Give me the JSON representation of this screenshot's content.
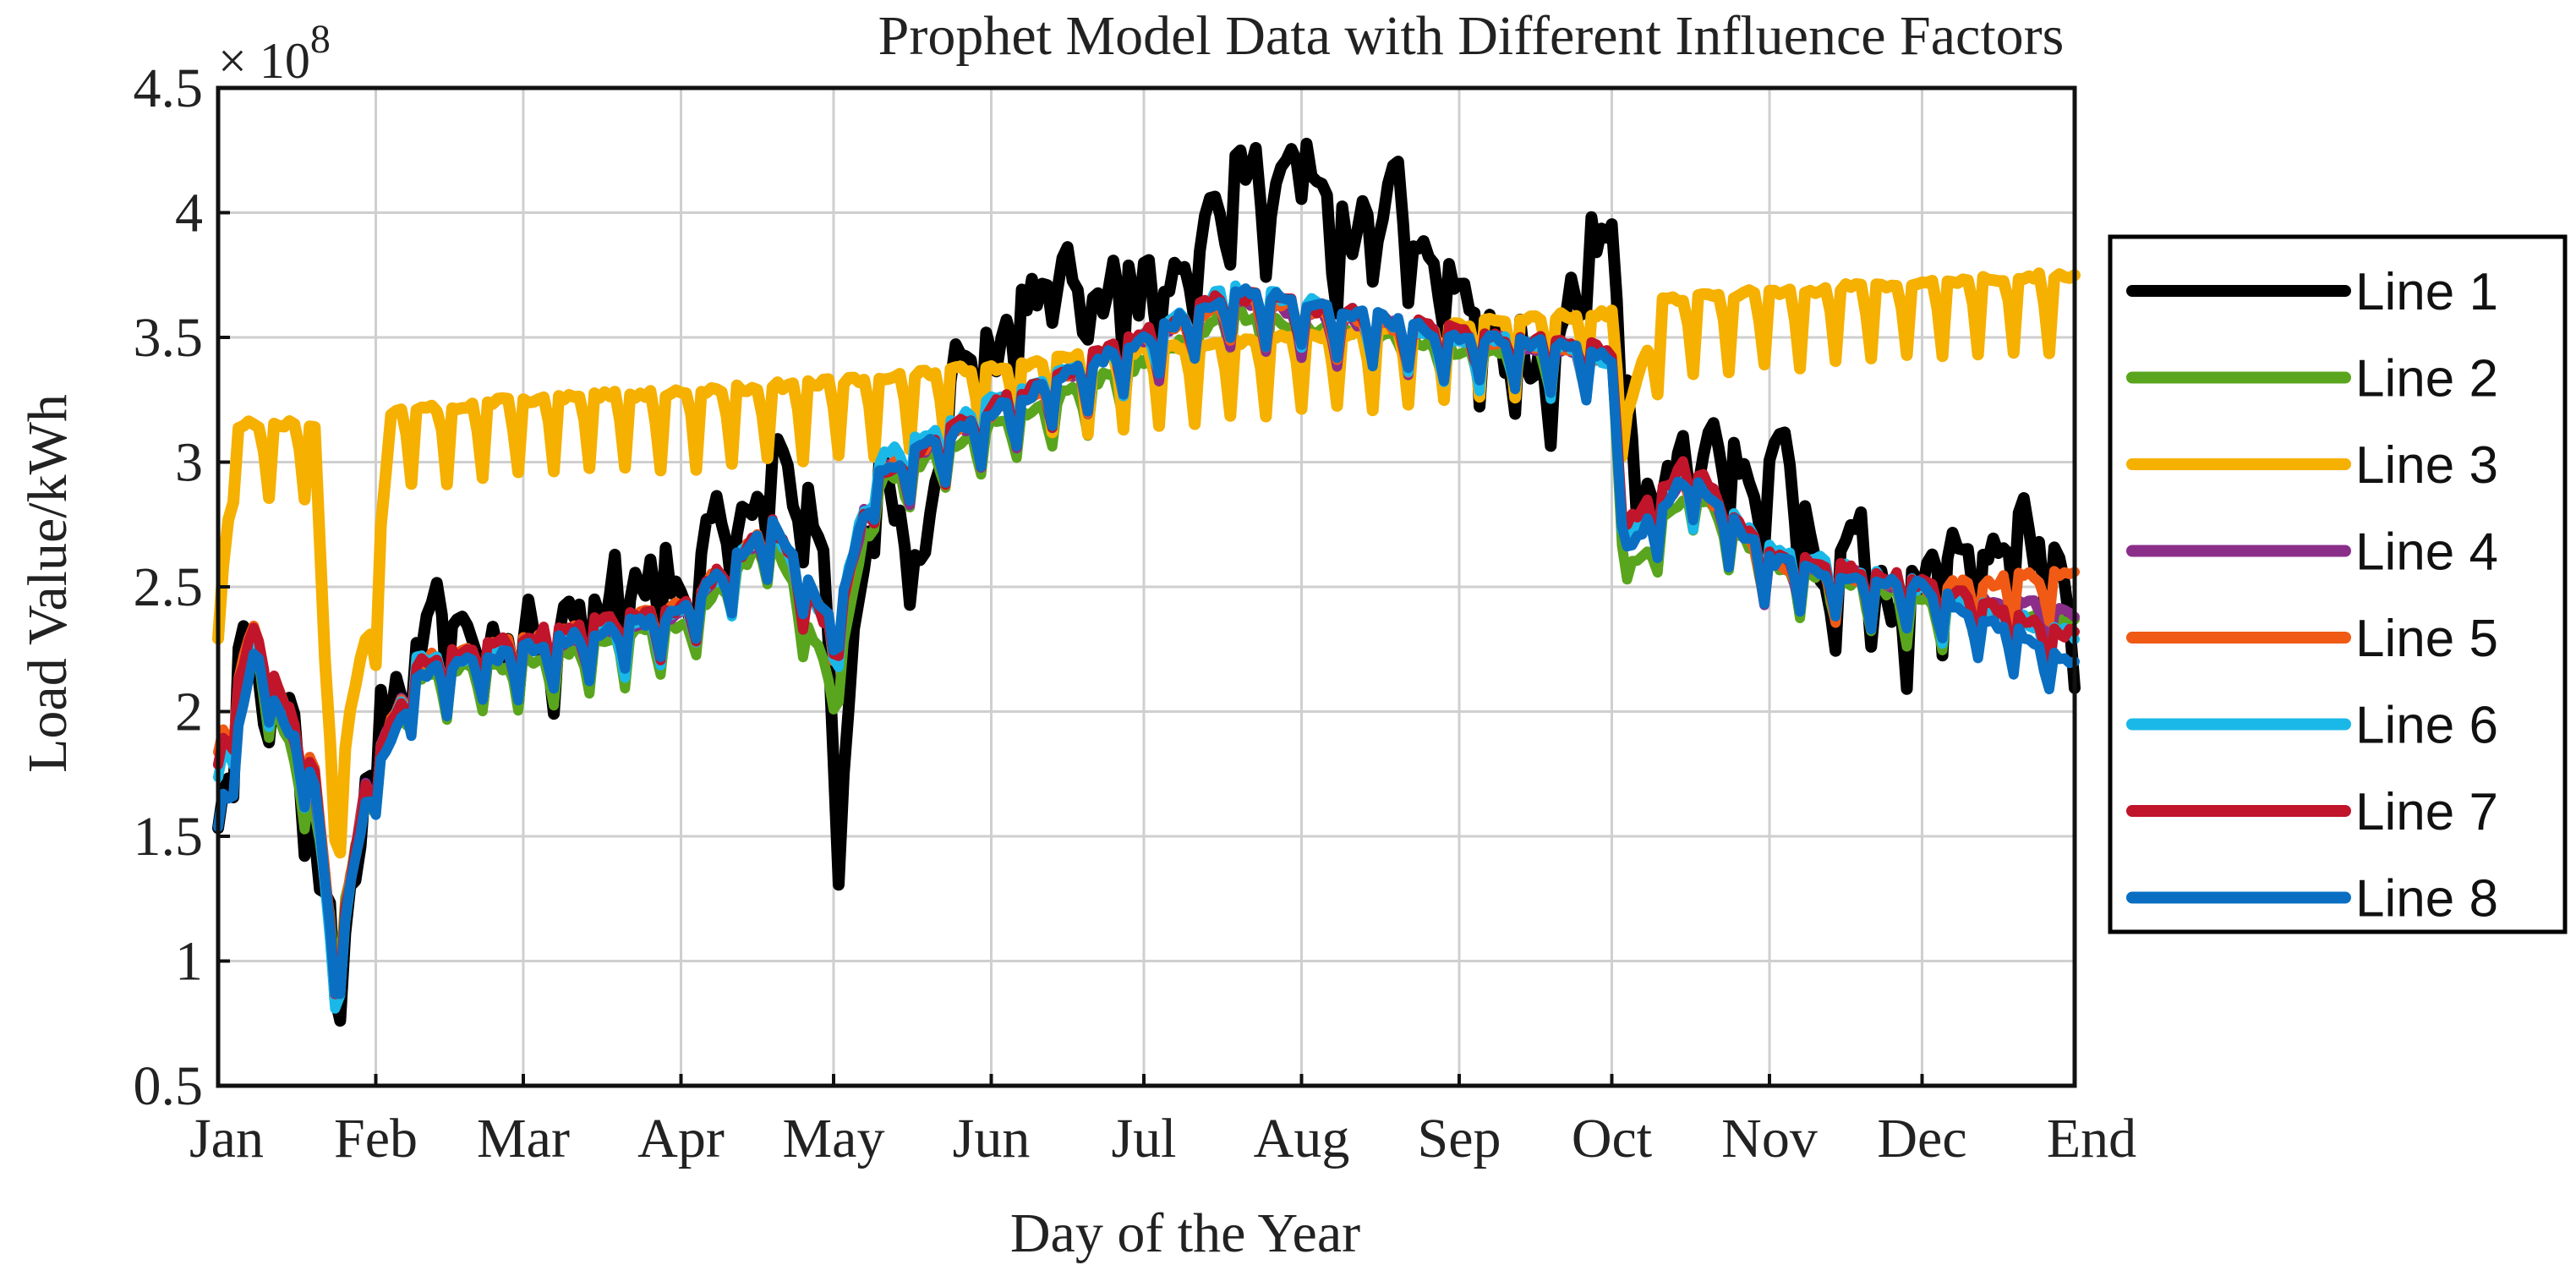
{
  "chart_data": {
    "type": "line",
    "title": "Prophet Model Data with Different Influence Factors",
    "xlabel": "Day of the Year",
    "ylabel": "Load Value/kWh",
    "y_multiplier_base": "× 10",
    "y_multiplier_exp": "8",
    "ylim": [
      0.5,
      4.5
    ],
    "yticks": [
      0.5,
      1,
      1.5,
      2,
      2.5,
      3,
      3.5,
      4,
      4.5
    ],
    "ytick_labels": [
      "0.5",
      "1",
      "1.5",
      "2",
      "2.5",
      "3",
      "3.5",
      "4",
      "4.5"
    ],
    "xlim": [
      1,
      366
    ],
    "xticks": [
      1,
      32,
      61,
      92,
      122,
      153,
      183,
      214,
      245,
      275,
      306,
      336,
      366
    ],
    "xtick_labels": [
      "Jan",
      "Feb",
      "Mar",
      "Apr",
      "May",
      "Jun",
      "Jul",
      "Aug",
      "Sep",
      "Oct",
      "Nov",
      "Dec",
      "End"
    ],
    "grid": true,
    "legend_position": "outside-right",
    "series": [
      {
        "name": "Line 1",
        "color": "#000000",
        "width": 14,
        "profile": "actual",
        "anchors": [
          [
            1,
            1.6
          ],
          [
            5,
            2.3
          ],
          [
            15,
            2.1
          ],
          [
            20,
            1.5
          ],
          [
            24,
            1.05
          ],
          [
            30,
            1.7
          ],
          [
            40,
            2.35
          ],
          [
            61,
            2.35
          ],
          [
            80,
            2.55
          ],
          [
            92,
            2.5
          ],
          [
            103,
            2.8
          ],
          [
            110,
            3.0
          ],
          [
            120,
            2.7
          ],
          [
            123,
            1.85
          ],
          [
            130,
            2.9
          ],
          [
            140,
            2.7
          ],
          [
            146,
            3.5
          ],
          [
            150,
            3.3
          ],
          [
            160,
            3.7
          ],
          [
            175,
            3.7
          ],
          [
            185,
            3.8
          ],
          [
            195,
            4.05
          ],
          [
            205,
            4.15
          ],
          [
            213,
            4.25
          ],
          [
            220,
            3.9
          ],
          [
            232,
            4.0
          ],
          [
            245,
            3.7
          ],
          [
            255,
            3.4
          ],
          [
            263,
            3.4
          ],
          [
            270,
            3.8
          ],
          [
            275,
            3.8
          ],
          [
            280,
            2.8
          ],
          [
            290,
            3.0
          ],
          [
            300,
            2.9
          ],
          [
            305,
            3.1
          ],
          [
            315,
            2.7
          ],
          [
            325,
            2.6
          ],
          [
            336,
            2.5
          ],
          [
            345,
            2.65
          ],
          [
            355,
            2.75
          ],
          [
            362,
            2.6
          ],
          [
            366,
            2.05
          ]
        ],
        "amp": 0.3,
        "seed": 11
      },
      {
        "name": "Line 2",
        "color": "#5aa51e",
        "width": 12,
        "profile": "model",
        "anchors": [
          [
            1,
            1.8
          ],
          [
            8,
            2.25
          ],
          [
            20,
            1.6
          ],
          [
            24,
            1.05
          ],
          [
            30,
            1.65
          ],
          [
            40,
            2.15
          ],
          [
            61,
            2.2
          ],
          [
            92,
            2.35
          ],
          [
            110,
            2.7
          ],
          [
            122,
            2.1
          ],
          [
            130,
            2.9
          ],
          [
            153,
            3.15
          ],
          [
            183,
            3.4
          ],
          [
            200,
            3.6
          ],
          [
            214,
            3.55
          ],
          [
            245,
            3.45
          ],
          [
            270,
            3.45
          ],
          [
            275,
            3.4
          ],
          [
            278,
            2.55
          ],
          [
            290,
            2.9
          ],
          [
            306,
            2.6
          ],
          [
            336,
            2.45
          ],
          [
            366,
            2.35
          ]
        ],
        "amp": 0.18,
        "seed": 12
      },
      {
        "name": "Line 3",
        "color": "#f5b000",
        "width": 14,
        "profile": "prophet",
        "anchors": [
          [
            1,
            2.3
          ],
          [
            4,
            3.15
          ],
          [
            20,
            3.15
          ],
          [
            22,
            2.2
          ],
          [
            24,
            1.6
          ],
          [
            27,
            2.0
          ],
          [
            32,
            2.5
          ],
          [
            35,
            3.2
          ],
          [
            61,
            3.25
          ],
          [
            92,
            3.28
          ],
          [
            122,
            3.32
          ],
          [
            153,
            3.38
          ],
          [
            183,
            3.45
          ],
          [
            214,
            3.5
          ],
          [
            245,
            3.55
          ],
          [
            275,
            3.6
          ],
          [
            278,
            3.2
          ],
          [
            285,
            3.65
          ],
          [
            306,
            3.68
          ],
          [
            336,
            3.72
          ],
          [
            366,
            3.75
          ]
        ],
        "amp": 0.3,
        "seed": 13
      },
      {
        "name": "Line 4",
        "color": "#8a2e8a",
        "width": 12,
        "profile": "model",
        "anchors": [
          [
            1,
            1.8
          ],
          [
            8,
            2.3
          ],
          [
            20,
            1.7
          ],
          [
            24,
            0.95
          ],
          [
            30,
            1.7
          ],
          [
            40,
            2.2
          ],
          [
            61,
            2.25
          ],
          [
            92,
            2.4
          ],
          [
            110,
            2.75
          ],
          [
            122,
            2.3
          ],
          [
            130,
            2.95
          ],
          [
            153,
            3.2
          ],
          [
            183,
            3.5
          ],
          [
            200,
            3.65
          ],
          [
            214,
            3.6
          ],
          [
            245,
            3.5
          ],
          [
            270,
            3.45
          ],
          [
            275,
            3.4
          ],
          [
            278,
            2.7
          ],
          [
            290,
            2.95
          ],
          [
            306,
            2.6
          ],
          [
            336,
            2.5
          ],
          [
            366,
            2.4
          ]
        ],
        "amp": 0.18,
        "seed": 14
      },
      {
        "name": "Line 5",
        "color": "#f05a14",
        "width": 12,
        "profile": "model",
        "anchors": [
          [
            1,
            1.85
          ],
          [
            8,
            2.35
          ],
          [
            20,
            1.75
          ],
          [
            24,
            0.95
          ],
          [
            30,
            1.7
          ],
          [
            40,
            2.2
          ],
          [
            61,
            2.28
          ],
          [
            92,
            2.42
          ],
          [
            110,
            2.75
          ],
          [
            122,
            2.3
          ],
          [
            130,
            2.95
          ],
          [
            153,
            3.2
          ],
          [
            183,
            3.5
          ],
          [
            200,
            3.65
          ],
          [
            214,
            3.62
          ],
          [
            245,
            3.5
          ],
          [
            270,
            3.45
          ],
          [
            275,
            3.4
          ],
          [
            278,
            2.7
          ],
          [
            290,
            2.95
          ],
          [
            306,
            2.6
          ],
          [
            336,
            2.5
          ],
          [
            366,
            2.55
          ]
        ],
        "amp": 0.18,
        "seed": 15
      },
      {
        "name": "Line 6",
        "color": "#1ab8e8",
        "width": 12,
        "profile": "model",
        "anchors": [
          [
            1,
            1.75
          ],
          [
            8,
            2.3
          ],
          [
            20,
            1.7
          ],
          [
            24,
            0.9
          ],
          [
            30,
            1.7
          ],
          [
            40,
            2.2
          ],
          [
            61,
            2.25
          ],
          [
            92,
            2.4
          ],
          [
            110,
            2.75
          ],
          [
            122,
            2.3
          ],
          [
            130,
            3.0
          ],
          [
            153,
            3.25
          ],
          [
            183,
            3.5
          ],
          [
            200,
            3.7
          ],
          [
            214,
            3.65
          ],
          [
            245,
            3.5
          ],
          [
            270,
            3.45
          ],
          [
            275,
            3.4
          ],
          [
            278,
            2.7
          ],
          [
            290,
            2.95
          ],
          [
            306,
            2.65
          ],
          [
            336,
            2.5
          ],
          [
            366,
            2.3
          ]
        ],
        "amp": 0.19,
        "seed": 16
      },
      {
        "name": "Line 7",
        "color": "#c0152a",
        "width": 12,
        "profile": "model",
        "anchors": [
          [
            1,
            1.8
          ],
          [
            8,
            2.35
          ],
          [
            20,
            1.75
          ],
          [
            24,
            0.95
          ],
          [
            30,
            1.7
          ],
          [
            40,
            2.2
          ],
          [
            61,
            2.3
          ],
          [
            92,
            2.42
          ],
          [
            110,
            2.75
          ],
          [
            122,
            2.3
          ],
          [
            130,
            2.95
          ],
          [
            153,
            3.22
          ],
          [
            183,
            3.52
          ],
          [
            200,
            3.67
          ],
          [
            214,
            3.63
          ],
          [
            245,
            3.52
          ],
          [
            270,
            3.47
          ],
          [
            275,
            3.42
          ],
          [
            278,
            2.75
          ],
          [
            290,
            3.0
          ],
          [
            306,
            2.62
          ],
          [
            336,
            2.52
          ],
          [
            366,
            2.3
          ]
        ],
        "amp": 0.18,
        "seed": 17
      },
      {
        "name": "Line 8",
        "color": "#0a6fc2",
        "width": 12,
        "profile": "model",
        "anchors": [
          [
            1,
            1.55
          ],
          [
            8,
            2.25
          ],
          [
            20,
            1.7
          ],
          [
            24,
            0.95
          ],
          [
            30,
            1.65
          ],
          [
            40,
            2.15
          ],
          [
            61,
            2.25
          ],
          [
            92,
            2.4
          ],
          [
            110,
            2.75
          ],
          [
            122,
            2.35
          ],
          [
            130,
            2.95
          ],
          [
            153,
            3.2
          ],
          [
            183,
            3.5
          ],
          [
            200,
            3.68
          ],
          [
            214,
            3.65
          ],
          [
            245,
            3.5
          ],
          [
            270,
            3.45
          ],
          [
            275,
            3.4
          ],
          [
            278,
            2.65
          ],
          [
            290,
            2.95
          ],
          [
            306,
            2.6
          ],
          [
            336,
            2.5
          ],
          [
            366,
            2.2
          ]
        ],
        "amp": 0.18,
        "seed": 18
      }
    ]
  }
}
